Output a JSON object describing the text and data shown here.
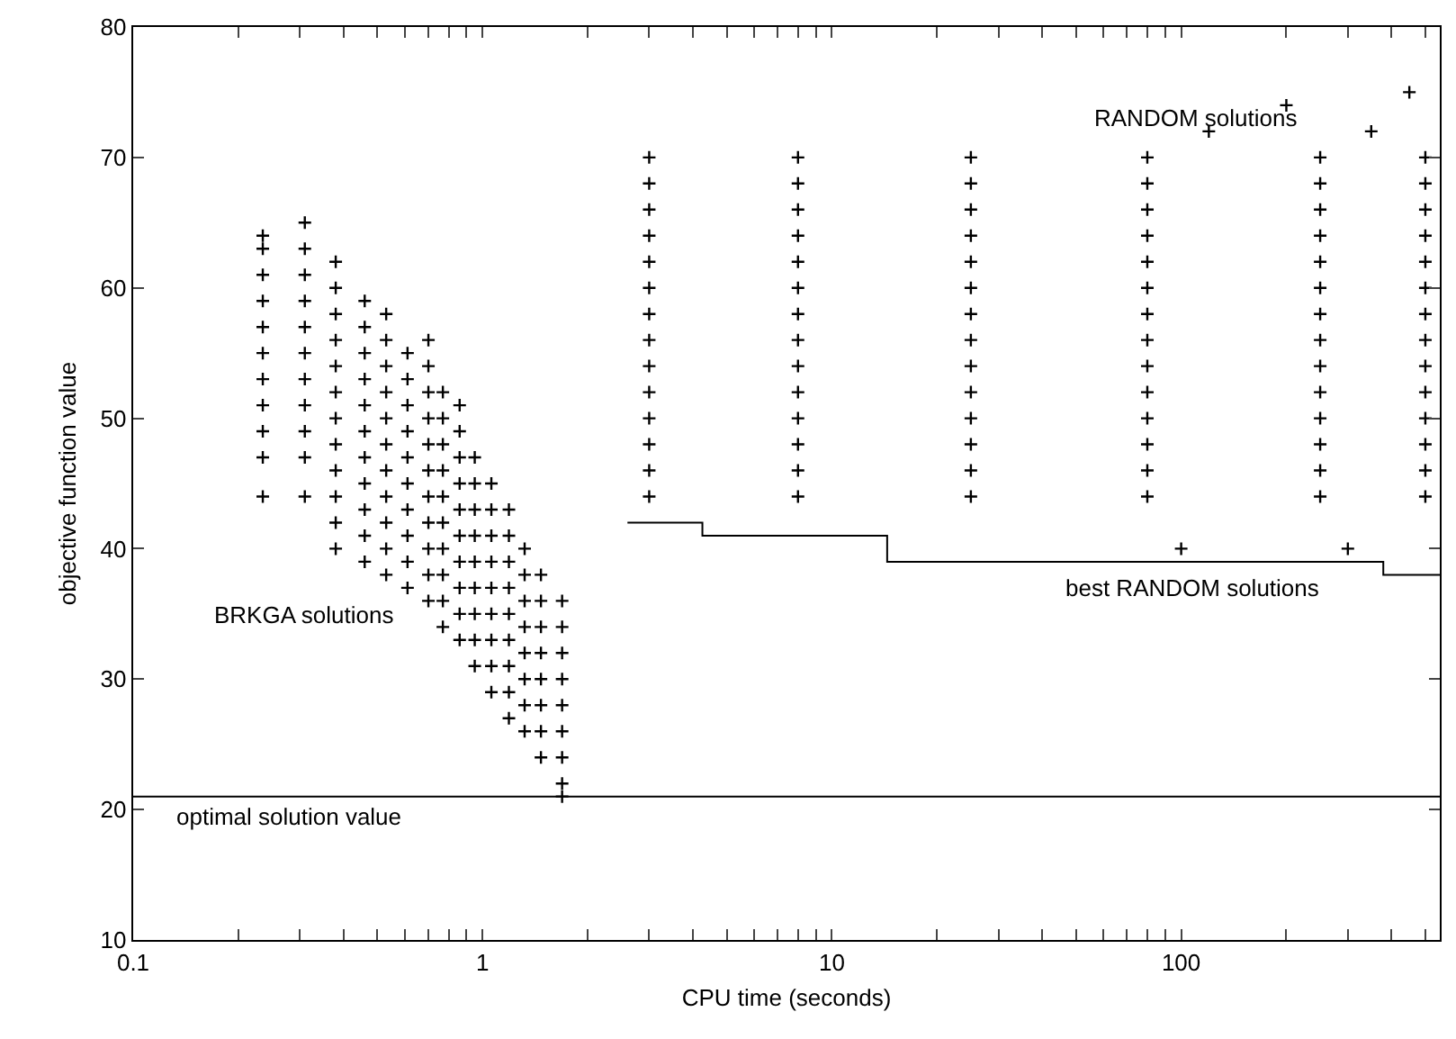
{
  "chart_data": {
    "type": "scatter",
    "xlabel": "CPU time (seconds)",
    "ylabel": "objective function value",
    "log": "x",
    "grid": false,
    "marker": "cross",
    "xlim": [
      0.1,
      550
    ],
    "ylim": [
      10,
      80
    ],
    "xticks": [
      0.1,
      {
        "value": 0.2,
        "label": null
      },
      {
        "value": 0.3,
        "label": null
      },
      {
        "value": 0.4,
        "label": null
      },
      {
        "value": 0.5,
        "label": null
      },
      {
        "value": 0.6,
        "label": null
      },
      {
        "value": 0.7,
        "label": null
      },
      {
        "value": 0.8,
        "label": null
      },
      {
        "value": 0.9,
        "label": null
      },
      1,
      {
        "value": 2,
        "label": null
      },
      {
        "value": 3,
        "label": null
      },
      {
        "value": 4,
        "label": null
      },
      {
        "value": 5,
        "label": null
      },
      {
        "value": 6,
        "label": null
      },
      {
        "value": 7,
        "label": null
      },
      {
        "value": 8,
        "label": null
      },
      {
        "value": 9,
        "label": null
      },
      10,
      {
        "value": 20,
        "label": null
      },
      {
        "value": 30,
        "label": null
      },
      {
        "value": 40,
        "label": null
      },
      {
        "value": 50,
        "label": null
      },
      {
        "value": 60,
        "label": null
      },
      {
        "value": 70,
        "label": null
      },
      {
        "value": 80,
        "label": null
      },
      {
        "value": 90,
        "label": null
      },
      100,
      {
        "value": 200,
        "label": null
      },
      {
        "value": 300,
        "label": null
      },
      {
        "value": 400,
        "label": null
      },
      {
        "value": 500,
        "label": null
      }
    ],
    "yticks": [
      10,
      20,
      30,
      40,
      50,
      60,
      70,
      80
    ],
    "series": [
      {
        "color": "#000000",
        "x": [
          0.235,
          0.235,
          0.235,
          0.235,
          0.235,
          0.235,
          0.235,
          0.235,
          0.235,
          0.235,
          0.235,
          0.31,
          0.31,
          0.31,
          0.31,
          0.31,
          0.31,
          0.31,
          0.31,
          0.31,
          0.31,
          0.31,
          0.38,
          0.38,
          0.38,
          0.38,
          0.38,
          0.38,
          0.38,
          0.38,
          0.38,
          0.38,
          0.38,
          0.38,
          0.46,
          0.46,
          0.46,
          0.46,
          0.46,
          0.46,
          0.46,
          0.46,
          0.46,
          0.46,
          0.46,
          0.53,
          0.53,
          0.53,
          0.53,
          0.53,
          0.53,
          0.53,
          0.53,
          0.53,
          0.53,
          0.53,
          0.61,
          0.61,
          0.61,
          0.61,
          0.61,
          0.61,
          0.61,
          0.61,
          0.61,
          0.61,
          0.7,
          0.7,
          0.7,
          0.7,
          0.7,
          0.7,
          0.7,
          0.7,
          0.7,
          0.7,
          0.7,
          0.77,
          0.77,
          0.77,
          0.77,
          0.77,
          0.77,
          0.77,
          0.77,
          0.77,
          0.77,
          0.86,
          0.86,
          0.86,
          0.86,
          0.86,
          0.86,
          0.86,
          0.86,
          0.86,
          0.86,
          0.95,
          0.95,
          0.95,
          0.95,
          0.95,
          0.95,
          0.95,
          0.95,
          0.95,
          1.06,
          1.06,
          1.06,
          1.06,
          1.06,
          1.06,
          1.06,
          1.06,
          1.06,
          1.19,
          1.19,
          1.19,
          1.19,
          1.19,
          1.19,
          1.19,
          1.19,
          1.19,
          1.32,
          1.32,
          1.32,
          1.32,
          1.32,
          1.32,
          1.32,
          1.32,
          1.47,
          1.47,
          1.47,
          1.47,
          1.47,
          1.47,
          1.47,
          1.47,
          1.69,
          1.69,
          1.69,
          1.69,
          1.69,
          1.69,
          1.69,
          1.69,
          1.69
        ],
        "values": [
          44,
          47,
          49,
          51,
          53,
          55,
          57,
          59,
          61,
          63,
          64,
          44,
          47,
          49,
          51,
          53,
          55,
          57,
          59,
          61,
          63,
          65,
          40,
          42,
          44,
          46,
          48,
          50,
          52,
          54,
          56,
          58,
          60,
          62,
          39,
          41,
          43,
          45,
          47,
          49,
          51,
          53,
          55,
          57,
          59,
          38,
          40,
          42,
          44,
          46,
          48,
          50,
          52,
          54,
          56,
          58,
          37,
          39,
          41,
          43,
          45,
          47,
          49,
          51,
          53,
          55,
          36,
          38,
          40,
          42,
          44,
          46,
          48,
          50,
          52,
          54,
          56,
          34,
          36,
          38,
          40,
          42,
          44,
          46,
          48,
          50,
          52,
          33,
          35,
          37,
          39,
          41,
          43,
          45,
          47,
          49,
          51,
          31,
          33,
          35,
          37,
          39,
          41,
          43,
          45,
          47,
          29,
          31,
          33,
          35,
          37,
          39,
          41,
          43,
          45,
          27,
          29,
          31,
          33,
          35,
          37,
          39,
          41,
          43,
          26,
          28,
          30,
          32,
          34,
          36,
          38,
          40,
          24,
          26,
          28,
          30,
          32,
          34,
          36,
          38,
          21,
          22,
          24,
          26,
          28,
          30,
          32,
          34,
          36
        ]
      },
      {
        "color": "#000000",
        "x": [
          3,
          8,
          25,
          80,
          250,
          500,
          3,
          8,
          25,
          80,
          250,
          500,
          3,
          8,
          25,
          80,
          250,
          500,
          3,
          8,
          25,
          80,
          250,
          500,
          3,
          8,
          25,
          80,
          250,
          500,
          3,
          8,
          25,
          80,
          250,
          500,
          3,
          8,
          25,
          80,
          250,
          500,
          3,
          8,
          25,
          80,
          250,
          500,
          3,
          8,
          25,
          80,
          250,
          500,
          3,
          8,
          25,
          80,
          250,
          500,
          3,
          8,
          25,
          80,
          250,
          500,
          3,
          8,
          25,
          80,
          250,
          500,
          3,
          8,
          25,
          80,
          250,
          500,
          3,
          8,
          25,
          80,
          250,
          500,
          100,
          300,
          120,
          350,
          200,
          450
        ],
        "values": [
          44,
          44,
          44,
          44,
          44,
          44,
          46,
          46,
          46,
          46,
          46,
          46,
          48,
          48,
          48,
          48,
          48,
          48,
          50,
          50,
          50,
          50,
          50,
          50,
          52,
          52,
          52,
          52,
          52,
          52,
          54,
          54,
          54,
          54,
          54,
          54,
          56,
          56,
          56,
          56,
          56,
          56,
          58,
          58,
          58,
          58,
          58,
          58,
          60,
          60,
          60,
          60,
          60,
          60,
          62,
          62,
          62,
          62,
          62,
          62,
          64,
          64,
          64,
          64,
          64,
          64,
          66,
          66,
          66,
          66,
          66,
          66,
          68,
          68,
          68,
          68,
          68,
          68,
          70,
          70,
          70,
          70,
          70,
          70,
          40,
          40,
          72,
          72,
          74,
          75
        ]
      },
      {
        "type": "line",
        "color": "#000000",
        "line_style": "solid",
        "marker": "none",
        "x": [
          2.6,
          4.26,
          4.26,
          14.4,
          14.4,
          379,
          379,
          550
        ],
        "values": [
          42,
          42,
          41,
          41,
          39,
          39,
          38,
          38
        ]
      }
    ],
    "ref_lines": [
      {
        "axis": "y",
        "value": 21,
        "label": "optimal solution value",
        "color": "#000000"
      }
    ],
    "annotations": [
      "RANDOM solutions",
      "BRKGA solutions",
      "best RANDOM solutions"
    ]
  }
}
